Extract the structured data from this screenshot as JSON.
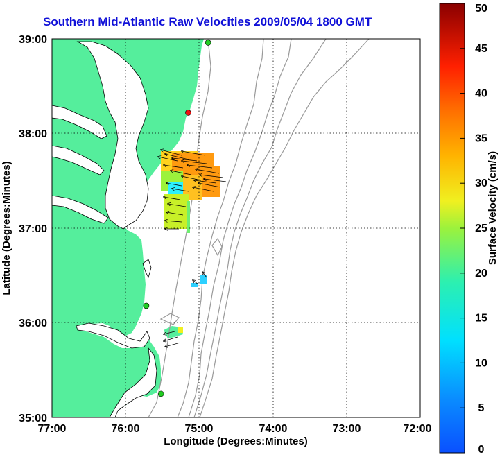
{
  "title": "Southern Mid-Atlantic Raw Velocities 2009/05/04 1800 GMT",
  "map": {
    "xlabel": "Longitude (Degrees:Minutes)",
    "ylabel": "Latitude (Degrees:Minutes)",
    "lon_range": [
      -77,
      -72
    ],
    "lat_range": [
      35,
      39
    ],
    "x_ticks": [
      "77:00",
      "76:00",
      "75:00",
      "74:00",
      "73:00",
      "72:00"
    ],
    "y_ticks": [
      "35:00",
      "36:00",
      "37:00",
      "38:00",
      "39:00"
    ],
    "colors": {
      "land": "#55ee9c",
      "water": "#ffffff",
      "bathymetry": "#999999",
      "frame": "#000000"
    },
    "stations": [
      {
        "lon": -74.88,
        "lat": 38.96,
        "color": "#22cc22"
      },
      {
        "lon": -75.15,
        "lat": 38.22,
        "color": "#ee1111"
      },
      {
        "lon": -75.72,
        "lat": 36.18,
        "color": "#22cc22"
      },
      {
        "lon": -75.52,
        "lat": 35.25,
        "color": "#22cc22"
      }
    ]
  },
  "colorbar": {
    "label": "Surface Velocity (cm/s)",
    "min": 0,
    "max": 50,
    "ticks": [
      "0",
      "5",
      "10",
      "15",
      "20",
      "25",
      "30",
      "35",
      "40",
      "45",
      "50"
    ]
  }
}
